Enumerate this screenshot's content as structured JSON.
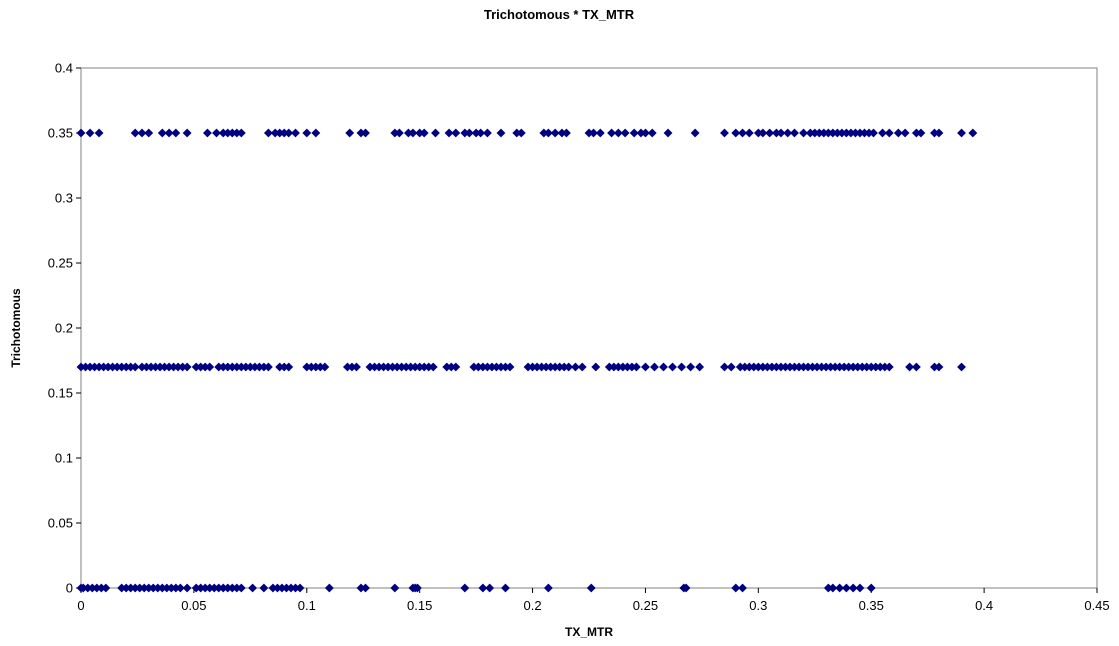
{
  "chart_data": {
    "type": "scatter",
    "title": "Trichotomous * TX_MTR",
    "xlabel": "TX_MTR",
    "ylabel": "Trichotomous",
    "xlim": [
      0,
      0.45
    ],
    "ylim": [
      0,
      0.4
    ],
    "x_ticks": [
      "0",
      "0.05",
      "0.1",
      "0.15",
      "0.2",
      "0.25",
      "0.3",
      "0.35",
      "0.4",
      "0.45"
    ],
    "y_ticks": [
      "0",
      "0.05",
      "0.1",
      "0.15",
      "0.2",
      "0.25",
      "0.3",
      "0.35",
      "0.4"
    ],
    "grid": false,
    "legend": "none",
    "marker": "diamond",
    "marker_color": "#000080",
    "series": [
      {
        "points": [
          {
            "y": 0.35,
            "x": [
              0,
              0.004,
              0.008,
              0.024,
              0.027,
              0.03,
              0.036,
              0.039,
              0.042,
              0.047,
              0.056,
              0.06,
              0.063,
              0.065,
              0.067,
              0.069,
              0.071,
              0.083,
              0.086,
              0.088,
              0.09,
              0.092,
              0.095,
              0.1,
              0.104,
              0.119,
              0.124,
              0.126,
              0.139,
              0.141,
              0.145,
              0.147,
              0.15,
              0.152,
              0.157,
              0.163,
              0.166,
              0.17,
              0.172,
              0.175,
              0.177,
              0.18,
              0.186,
              0.193,
              0.195,
              0.205,
              0.207,
              0.21,
              0.213,
              0.215,
              0.225,
              0.227,
              0.23,
              0.235,
              0.238,
              0.241,
              0.245,
              0.248,
              0.25,
              0.253,
              0.26,
              0.272,
              0.285,
              0.29,
              0.293,
              0.296,
              0.3,
              0.302,
              0.305,
              0.308,
              0.31,
              0.313,
              0.316,
              0.32,
              0.323,
              0.325,
              0.327,
              0.329,
              0.331,
              0.333,
              0.335,
              0.337,
              0.339,
              0.341,
              0.343,
              0.345,
              0.347,
              0.349,
              0.351,
              0.355,
              0.358,
              0.362,
              0.365,
              0.37,
              0.372,
              0.378,
              0.38,
              0.39,
              0.395
            ]
          },
          {
            "y": 0.17,
            "x": [
              0,
              0.002,
              0.004,
              0.006,
              0.008,
              0.01,
              0.012,
              0.014,
              0.016,
              0.018,
              0.02,
              0.022,
              0.024,
              0.027,
              0.029,
              0.031,
              0.033,
              0.035,
              0.037,
              0.039,
              0.041,
              0.043,
              0.045,
              0.047,
              0.051,
              0.053,
              0.055,
              0.057,
              0.061,
              0.063,
              0.065,
              0.067,
              0.069,
              0.071,
              0.073,
              0.075,
              0.077,
              0.079,
              0.081,
              0.083,
              0.088,
              0.09,
              0.092,
              0.1,
              0.102,
              0.104,
              0.106,
              0.108,
              0.118,
              0.12,
              0.122,
              0.128,
              0.13,
              0.132,
              0.134,
              0.136,
              0.138,
              0.14,
              0.142,
              0.144,
              0.146,
              0.148,
              0.15,
              0.152,
              0.154,
              0.156,
              0.162,
              0.164,
              0.166,
              0.174,
              0.176,
              0.178,
              0.18,
              0.182,
              0.184,
              0.186,
              0.188,
              0.19,
              0.198,
              0.2,
              0.202,
              0.204,
              0.206,
              0.208,
              0.21,
              0.212,
              0.214,
              0.216,
              0.219,
              0.222,
              0.228,
              0.234,
              0.236,
              0.238,
              0.24,
              0.242,
              0.244,
              0.246,
              0.25,
              0.254,
              0.258,
              0.262,
              0.266,
              0.27,
              0.274,
              0.285,
              0.288,
              0.292,
              0.294,
              0.296,
              0.298,
              0.3,
              0.302,
              0.304,
              0.306,
              0.308,
              0.31,
              0.312,
              0.314,
              0.316,
              0.318,
              0.32,
              0.322,
              0.324,
              0.326,
              0.328,
              0.33,
              0.332,
              0.334,
              0.336,
              0.338,
              0.34,
              0.342,
              0.344,
              0.346,
              0.348,
              0.35,
              0.352,
              0.354,
              0.356,
              0.358,
              0.367,
              0.37,
              0.378,
              0.38,
              0.39
            ]
          },
          {
            "y": 0,
            "x": [
              0,
              0.001,
              0.003,
              0.005,
              0.007,
              0.009,
              0.011,
              0.018,
              0.02,
              0.022,
              0.024,
              0.026,
              0.028,
              0.03,
              0.032,
              0.034,
              0.036,
              0.038,
              0.04,
              0.042,
              0.044,
              0.047,
              0.051,
              0.053,
              0.055,
              0.057,
              0.059,
              0.061,
              0.063,
              0.065,
              0.067,
              0.069,
              0.071,
              0.076,
              0.081,
              0.085,
              0.087,
              0.089,
              0.091,
              0.093,
              0.095,
              0.097,
              0.11,
              0.124,
              0.126,
              0.139,
              0.147,
              0.148,
              0.149,
              0.17,
              0.178,
              0.181,
              0.188,
              0.207,
              0.226,
              0.267,
              0.268,
              0.29,
              0.293,
              0.331,
              0.333,
              0.336,
              0.339,
              0.342,
              0.345,
              0.35
            ]
          }
        ]
      }
    ]
  }
}
